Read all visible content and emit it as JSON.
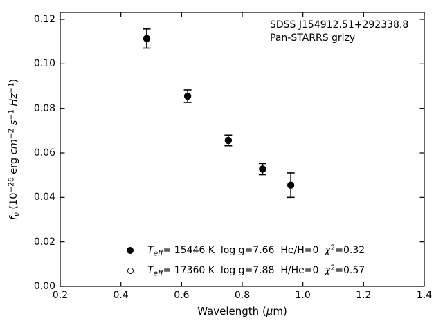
{
  "figure": {
    "colors": {
      "foreground": "#000000",
      "background": "#ffffff"
    },
    "annotation": {
      "line1": "SDSS J154912.51+292338.8",
      "line2": "Pan-STARRS grizy"
    },
    "axes": {
      "xlabel": {
        "pre": "Wavelength (",
        "mu": "μ",
        "post": "m)"
      },
      "ylabel": {
        "f": "f",
        "nu": "ν",
        "pre": " (10",
        "exp": "−26",
        "erg": " erg ",
        "cm": "cm",
        "cm_exp": "−2",
        "sp1": " ",
        "s": "s",
        "s_exp": "−1",
        "sp2": " ",
        "hz": "Hz",
        "hz_exp": "−1",
        "close": ")"
      },
      "x_tick_labels": [
        "0.2",
        "0.4",
        "0.6",
        "0.8",
        "1.0",
        "1.2",
        "1.4"
      ],
      "y_tick_labels": [
        "0.00",
        "0.02",
        "0.04",
        "0.06",
        "0.08",
        "0.10",
        "0.12"
      ]
    },
    "legend": {
      "rows": [
        {
          "marker": "filled-circle",
          "t": "T",
          "t_sub": "eff",
          "mid": "= 15446 K  log g=7.66  He/H=0  ",
          "chi": "χ",
          "chi_sup": "2",
          "tail": "=0.32"
        },
        {
          "marker": "open-circle",
          "t": "T",
          "t_sub": "eff",
          "mid": "= 17360 K  log g=7.88  H/He=0  ",
          "chi": "χ",
          "chi_sup": "2",
          "tail": "=0.57"
        }
      ]
    }
  },
  "chart_data": {
    "type": "scatter",
    "title": "",
    "xlabel": "Wavelength (μm)",
    "ylabel": "f_ν (10^−26 erg cm^−2 s^−1 Hz^−1)",
    "xlim": [
      0.2,
      1.4
    ],
    "ylim": [
      0.0,
      0.123
    ],
    "x_ticks": [
      0.2,
      0.4,
      0.6,
      0.8,
      1.0,
      1.2,
      1.4
    ],
    "y_ticks": [
      0.0,
      0.02,
      0.04,
      0.06,
      0.08,
      0.1,
      0.12
    ],
    "grid": false,
    "tick_direction": "in",
    "ticks_mirrored": true,
    "legend_position": "lower-center",
    "annotations": [
      "SDSS J154912.51+292338.8",
      "Pan-STARRS grizy"
    ],
    "series": [
      {
        "name": "Teff= 15446 K  log g=7.66  He/H=0  chi2=0.32",
        "marker": "filled-circle",
        "color": "#000000",
        "x": [
          0.485,
          0.62,
          0.754,
          0.867,
          0.96
        ],
        "y": [
          0.1114,
          0.0855,
          0.0656,
          0.0527,
          0.0455
        ],
        "yerr": [
          0.0043,
          0.0028,
          0.0024,
          0.0025,
          0.0055
        ]
      },
      {
        "name": "Teff= 17360 K  log g=7.88  H/He=0  chi2=0.57",
        "marker": "open-circle",
        "color": "#000000",
        "x": [],
        "y": [],
        "yerr": []
      }
    ]
  }
}
